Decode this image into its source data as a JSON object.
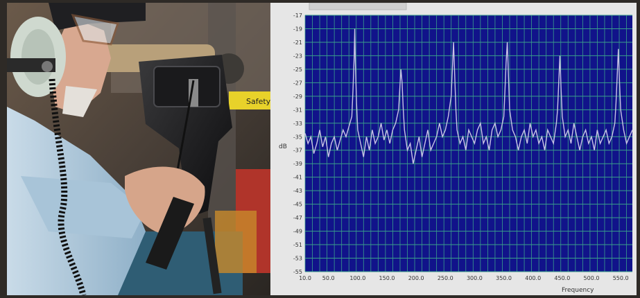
{
  "photo": {
    "tag_text": "Safety"
  },
  "chart_data": {
    "type": "line",
    "title": "",
    "xlabel": "Frequency",
    "ylabel": "dB",
    "xlim": [
      10,
      570
    ],
    "ylim": [
      -55,
      -17
    ],
    "yticks": [
      -17,
      -19,
      -21,
      -23,
      -25,
      -27,
      -29,
      -31,
      -33,
      -35,
      -37,
      -39,
      -41,
      -43,
      -45,
      -47,
      -49,
      -51,
      -53,
      -55
    ],
    "xticks": [
      10,
      50,
      100,
      150,
      200,
      250,
      300,
      350,
      400,
      450,
      500,
      550
    ],
    "xtick_labels": [
      "10.0",
      "50.0",
      "100.0",
      "150.0",
      "200.0",
      "250.0",
      "300.0",
      "350.0",
      "400.0",
      "450.0",
      "500.0",
      "550.0"
    ],
    "grid": true,
    "colors": {
      "plot_bg": "#11138a",
      "grid": "#3aa08a",
      "line": "#c9c4e6",
      "frame": "#e6e6e6"
    },
    "series": [
      {
        "x": [
          10,
          15,
          20,
          25,
          30,
          35,
          40,
          45,
          50,
          55,
          60,
          65,
          70,
          75,
          80,
          85,
          90,
          92,
          94,
          95,
          96,
          98,
          100,
          105,
          110,
          115,
          120,
          125,
          130,
          135,
          140,
          145,
          150,
          155,
          160,
          165,
          170,
          172,
          174,
          176,
          178,
          180,
          185,
          190,
          195,
          200,
          205,
          210,
          215,
          220,
          225,
          230,
          235,
          240,
          245,
          250,
          255,
          260,
          262,
          264,
          266,
          268,
          270,
          275,
          280,
          285,
          290,
          295,
          300,
          305,
          310,
          315,
          320,
          325,
          330,
          335,
          340,
          345,
          350,
          352,
          354,
          356,
          358,
          360,
          365,
          370,
          375,
          380,
          385,
          390,
          395,
          400,
          405,
          410,
          415,
          420,
          425,
          430,
          435,
          440,
          442,
          444,
          446,
          448,
          450,
          455,
          460,
          465,
          470,
          475,
          480,
          485,
          490,
          495,
          500,
          505,
          510,
          515,
          520,
          525,
          530,
          535,
          540,
          542,
          544,
          546,
          548,
          550,
          555,
          560,
          565,
          570
        ],
        "y": [
          -34.5,
          -36,
          -35,
          -37.5,
          -36,
          -34,
          -36.5,
          -35,
          -38,
          -36,
          -35,
          -37,
          -35.5,
          -34,
          -35,
          -33.5,
          -32,
          -28,
          -23,
          -19,
          -24,
          -30,
          -34,
          -36,
          -38,
          -35,
          -37,
          -34,
          -36,
          -35,
          -33,
          -35.5,
          -34,
          -36,
          -34,
          -33,
          -31,
          -28,
          -25,
          -27,
          -31,
          -34,
          -37,
          -36,
          -39,
          -37,
          -35,
          -38,
          -36,
          -34,
          -37,
          -36,
          -35,
          -33,
          -35,
          -34,
          -32,
          -29,
          -25,
          -21,
          -26,
          -31,
          -34,
          -36,
          -35,
          -37,
          -34,
          -35,
          -36,
          -34,
          -33,
          -36,
          -35,
          -37,
          -34,
          -33,
          -35,
          -34,
          -32,
          -28,
          -24,
          -21,
          -26,
          -31,
          -34,
          -35,
          -37,
          -35,
          -34,
          -36,
          -33,
          -35,
          -34,
          -36,
          -35,
          -37,
          -34,
          -35,
          -36,
          -33,
          -31,
          -27,
          -23,
          -28,
          -32,
          -35,
          -34,
          -36,
          -33,
          -35,
          -37,
          -35,
          -34,
          -36,
          -35,
          -37,
          -34,
          -36,
          -35,
          -34,
          -36,
          -35,
          -33,
          -30,
          -26,
          -22,
          -27,
          -31,
          -34,
          -36,
          -35,
          -34
        ]
      }
    ]
  }
}
